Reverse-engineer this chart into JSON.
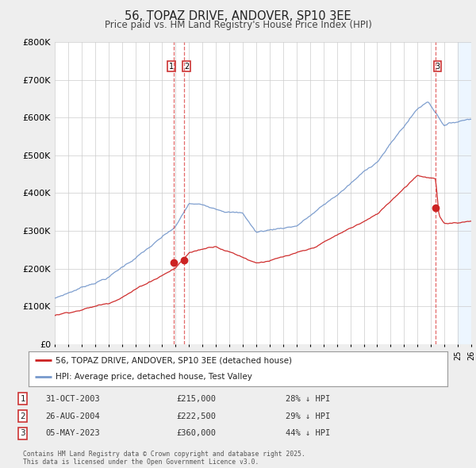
{
  "title": "56, TOPAZ DRIVE, ANDOVER, SP10 3EE",
  "subtitle": "Price paid vs. HM Land Registry's House Price Index (HPI)",
  "background_color": "#eeeeee",
  "plot_bg_color": "#ffffff",
  "ylim": [
    0,
    800000
  ],
  "yticks": [
    0,
    100000,
    200000,
    300000,
    400000,
    500000,
    600000,
    700000,
    800000
  ],
  "ytick_labels": [
    "£0",
    "£100K",
    "£200K",
    "£300K",
    "£400K",
    "£500K",
    "£600K",
    "£700K",
    "£800K"
  ],
  "x_start_year": 1995,
  "x_end_year": 2026,
  "hpi_color": "#7799cc",
  "price_color": "#cc2222",
  "marker1_year": 2003.83,
  "marker2_year": 2004.65,
  "marker3_year": 2023.35,
  "price1": 215000,
  "price2": 222500,
  "price3": 360000,
  "legend_label_price": "56, TOPAZ DRIVE, ANDOVER, SP10 3EE (detached house)",
  "legend_label_hpi": "HPI: Average price, detached house, Test Valley",
  "table_rows": [
    {
      "num": "1",
      "date": "31-OCT-2003",
      "price": "£215,000",
      "hpi": "28% ↓ HPI"
    },
    {
      "num": "2",
      "date": "26-AUG-2004",
      "price": "£222,500",
      "hpi": "29% ↓ HPI"
    },
    {
      "num": "3",
      "date": "05-MAY-2023",
      "price": "£360,000",
      "hpi": "44% ↓ HPI"
    }
  ],
  "footnote": "Contains HM Land Registry data © Crown copyright and database right 2025.\nThis data is licensed under the Open Government Licence v3.0."
}
